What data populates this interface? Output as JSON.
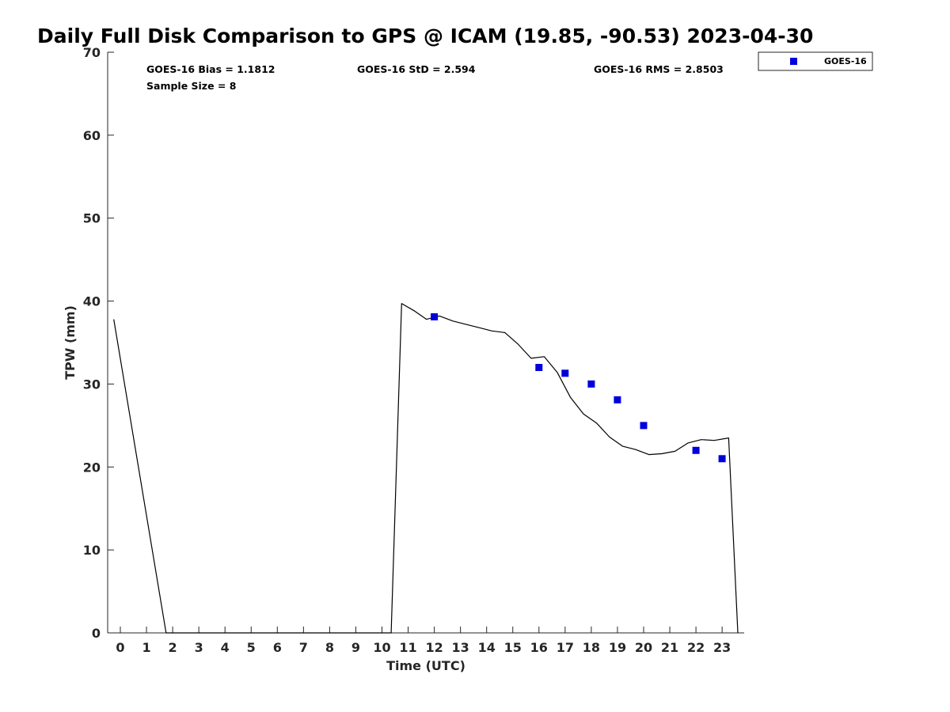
{
  "chart_data": {
    "type": "line",
    "title": "Daily Full Disk Comparison to GPS @ ICAM (19.85, -90.53) 2023-04-30",
    "xlabel": "Time (UTC)",
    "ylabel": "TPW (mm)",
    "ylim": [
      0,
      70
    ],
    "y_ticks": [
      "0",
      "10",
      "20",
      "30",
      "40",
      "50",
      "60",
      "70"
    ],
    "x_ticks": [
      "0",
      "1",
      "2",
      "3",
      "4",
      "5",
      "6",
      "7",
      "8",
      "9",
      "10",
      "11",
      "12",
      "13",
      "14",
      "15",
      "16",
      "17",
      "18",
      "19",
      "20",
      "21",
      "22",
      "23"
    ],
    "grid": false,
    "legend_position": "top-right",
    "stats": {
      "bias": "GOES-16 Bias = 1.1812",
      "std": "GOES-16 StD = 2.594",
      "rms": "GOES-16 RMS = 2.8503",
      "sample": "Sample Size = 8"
    },
    "series": [
      {
        "role": "gps-reference-line",
        "color": "#000000",
        "x": [
          -0.25,
          1.75,
          10.35,
          10.75,
          11.25,
          11.7,
          12.2,
          12.7,
          13.2,
          13.7,
          14.2,
          14.7,
          15.2,
          15.7,
          16.2,
          16.7,
          17.2,
          17.7,
          18.2,
          18.7,
          19.2,
          19.7,
          20.2,
          20.7,
          21.2,
          21.7,
          22.2,
          22.7,
          23.25,
          23.6
        ],
        "y": [
          37.8,
          0,
          0,
          39.7,
          38.8,
          37.8,
          38.2,
          37.6,
          37.2,
          36.8,
          36.4,
          36.2,
          34.8,
          33.1,
          33.3,
          31.4,
          28.4,
          26.4,
          25.3,
          23.6,
          22.5,
          22.1,
          21.5,
          21.6,
          21.9,
          22.9,
          23.3,
          23.2,
          23.5,
          0
        ]
      },
      {
        "name": "GOES-16",
        "color": "#0000dd",
        "marker": "square",
        "x": [
          12,
          16,
          17,
          18,
          19,
          20,
          22,
          23
        ],
        "y": [
          38.1,
          32.0,
          31.3,
          30.0,
          28.1,
          25.0,
          22.0,
          21.0
        ]
      }
    ]
  }
}
